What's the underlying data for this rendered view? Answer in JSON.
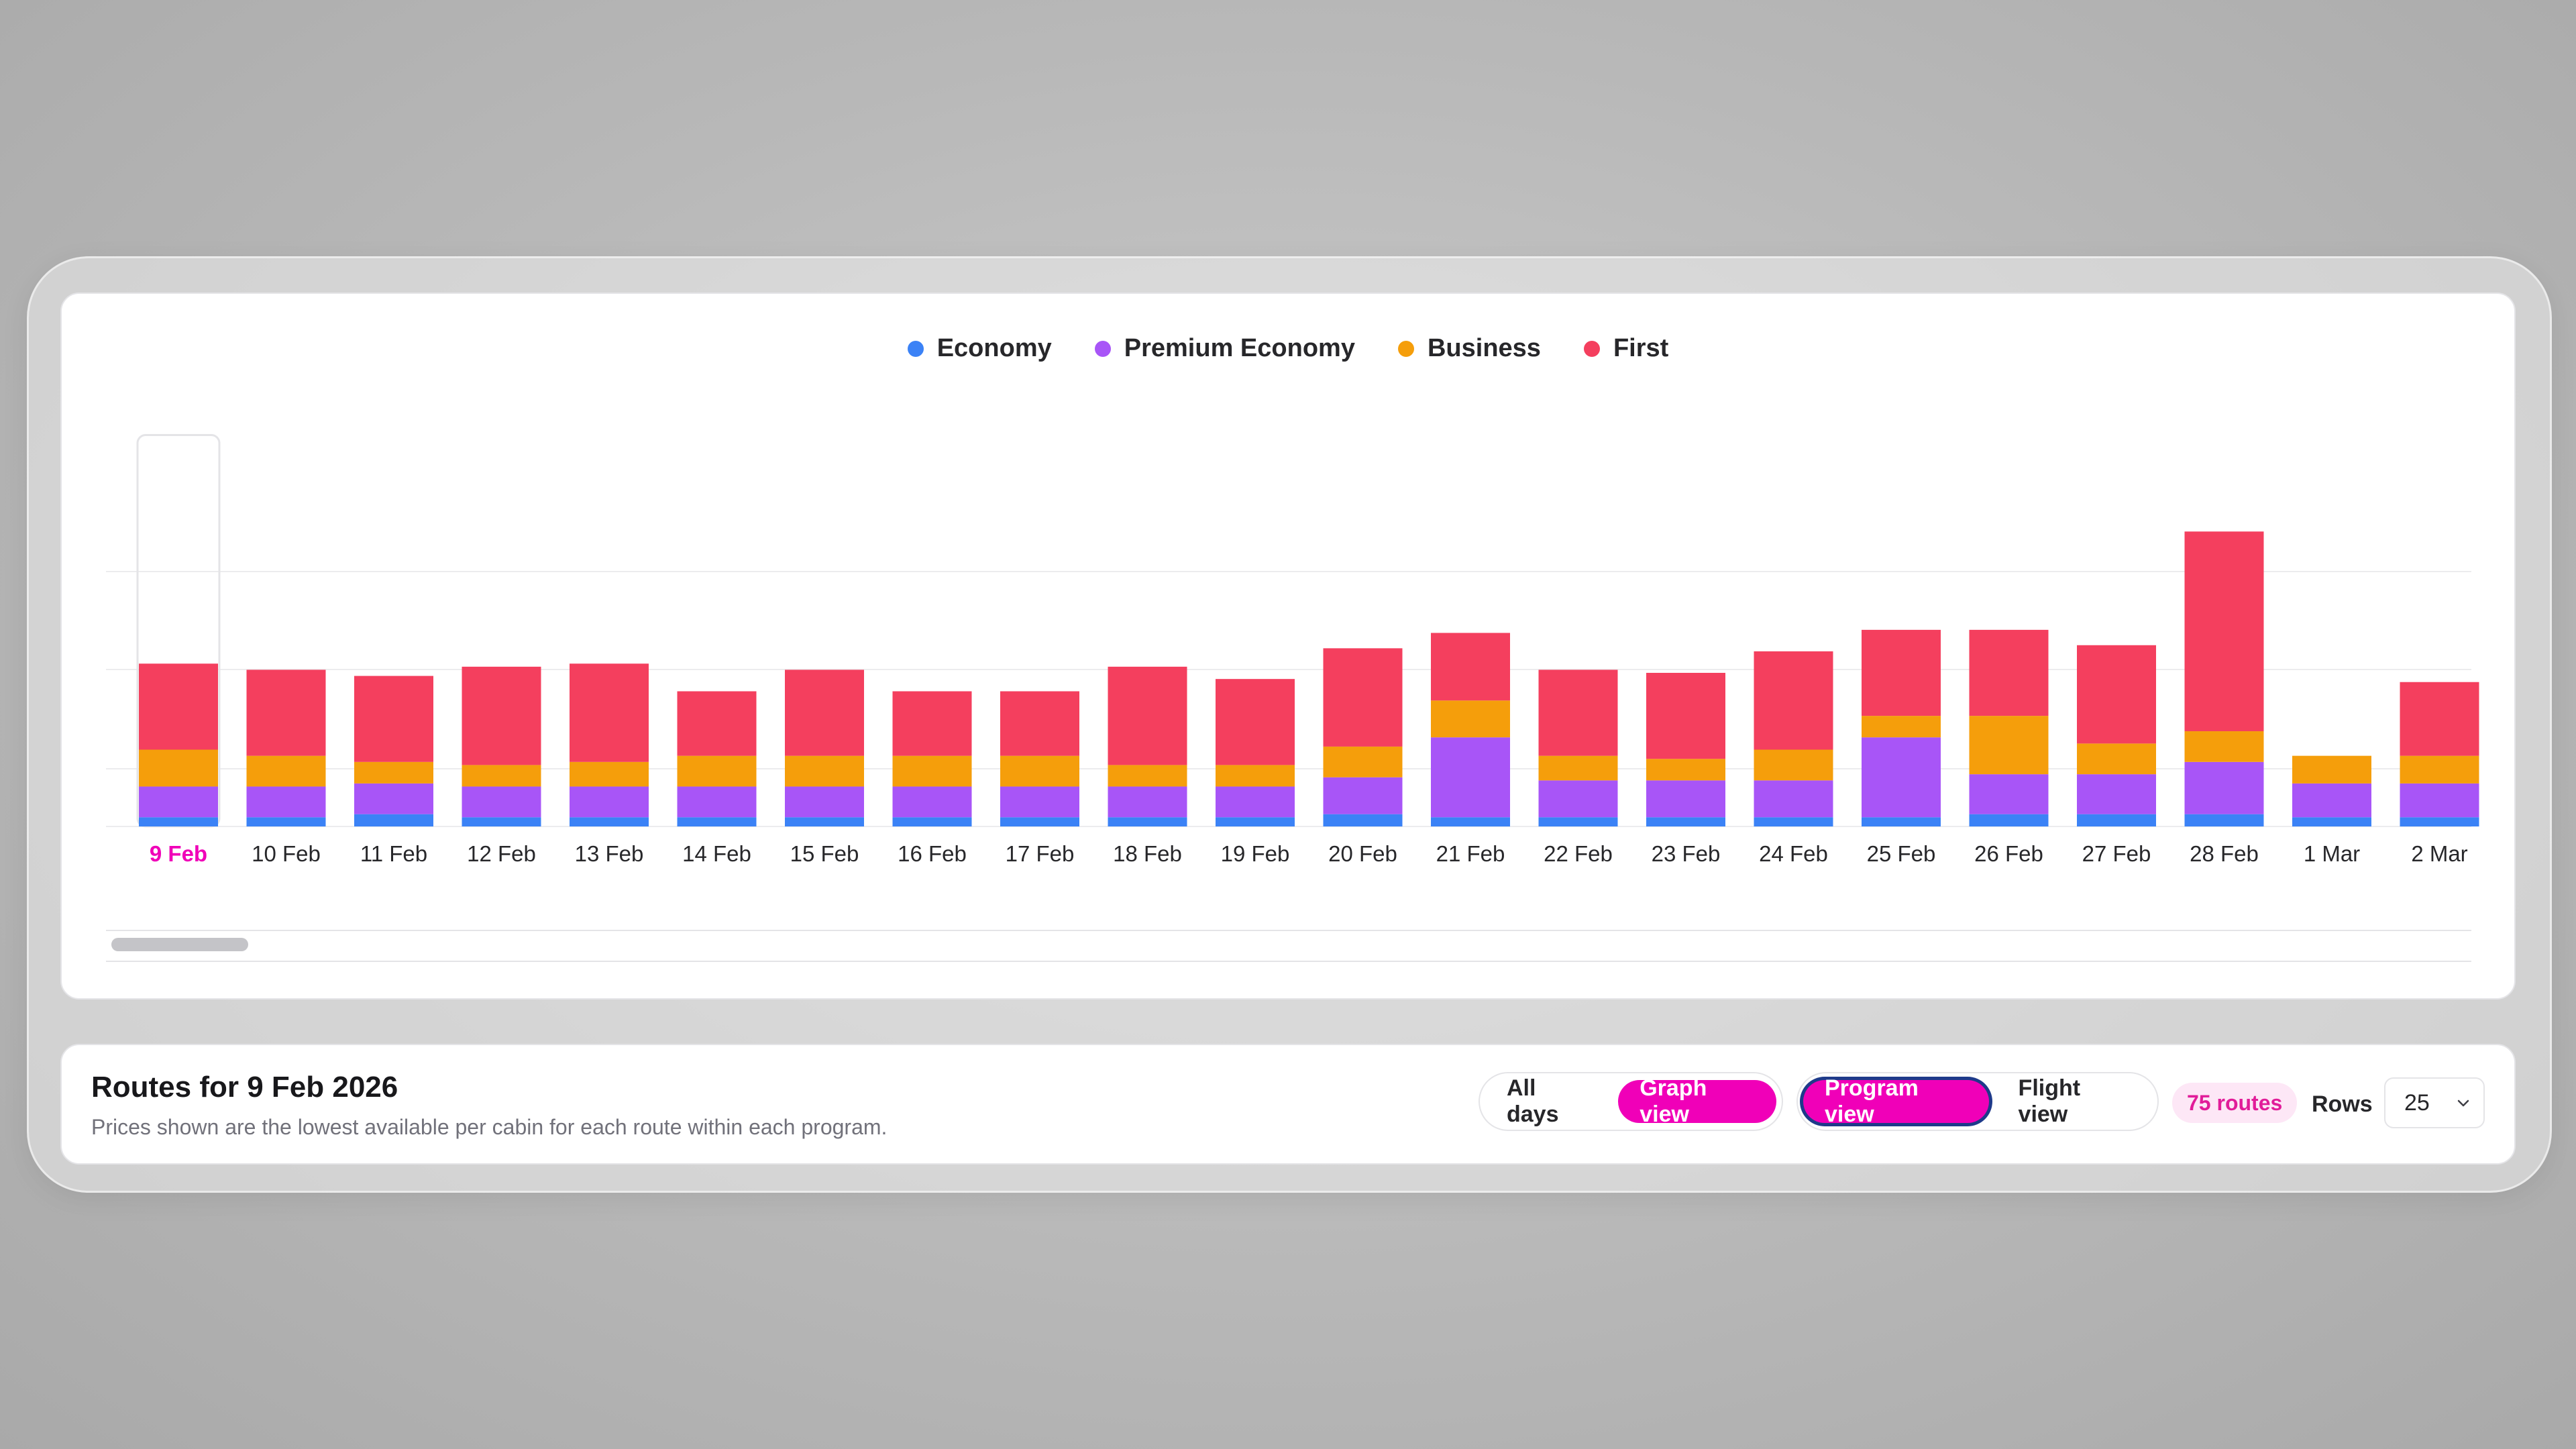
{
  "legend": {
    "economy": "Economy",
    "premium_economy": "Premium Economy",
    "business": "Business",
    "first": "First"
  },
  "colors": {
    "economy": "#3b82f6",
    "premium_economy": "#a855f7",
    "business": "#f59e0b",
    "first": "#f43f5e",
    "accent": "#f000b8"
  },
  "chart_data": {
    "type": "bar",
    "stacked": true,
    "selected_category": "9 Feb",
    "categories": [
      "9 Feb",
      "10 Feb",
      "11 Feb",
      "12 Feb",
      "13 Feb",
      "14 Feb",
      "15 Feb",
      "16 Feb",
      "17 Feb",
      "18 Feb",
      "19 Feb",
      "20 Feb",
      "21 Feb",
      "22 Feb",
      "23 Feb",
      "24 Feb",
      "25 Feb",
      "26 Feb",
      "27 Feb",
      "28 Feb",
      "1 Mar",
      "2 Mar"
    ],
    "series": [
      {
        "name": "Economy",
        "values": [
          3,
          3,
          4,
          3,
          3,
          3,
          3,
          3,
          3,
          3,
          3,
          4,
          3,
          3,
          3,
          3,
          3,
          4,
          4,
          4,
          3,
          3
        ]
      },
      {
        "name": "Premium Economy",
        "values": [
          10,
          10,
          10,
          10,
          10,
          10,
          10,
          10,
          10,
          10,
          10,
          12,
          26,
          12,
          12,
          12,
          26,
          13,
          13,
          17,
          11,
          11
        ]
      },
      {
        "name": "Business",
        "values": [
          12,
          10,
          7,
          7,
          8,
          10,
          10,
          10,
          10,
          7,
          7,
          10,
          12,
          8,
          7,
          10,
          7,
          19,
          10,
          10,
          9,
          9
        ]
      },
      {
        "name": "First",
        "values": [
          28,
          28,
          28,
          32,
          32,
          21,
          28,
          21,
          21,
          32,
          28,
          32,
          22,
          28,
          28,
          32,
          28,
          28,
          32,
          65,
          0,
          24
        ]
      }
    ],
    "ylim": [
      0,
      130
    ],
    "grid": true,
    "legend_position": "top-center"
  },
  "scrollbar": {
    "position": "start"
  },
  "routes": {
    "title": "Routes for 9 Feb 2026",
    "subtitle": "Prices shown are the lowest available per cabin for each route within each program.",
    "all_days": "All days",
    "graph_view": "Graph view",
    "program_view": "Program view",
    "flight_view": "Flight view",
    "count": "75 routes",
    "rows_label": "Rows",
    "rows_value": "25"
  }
}
